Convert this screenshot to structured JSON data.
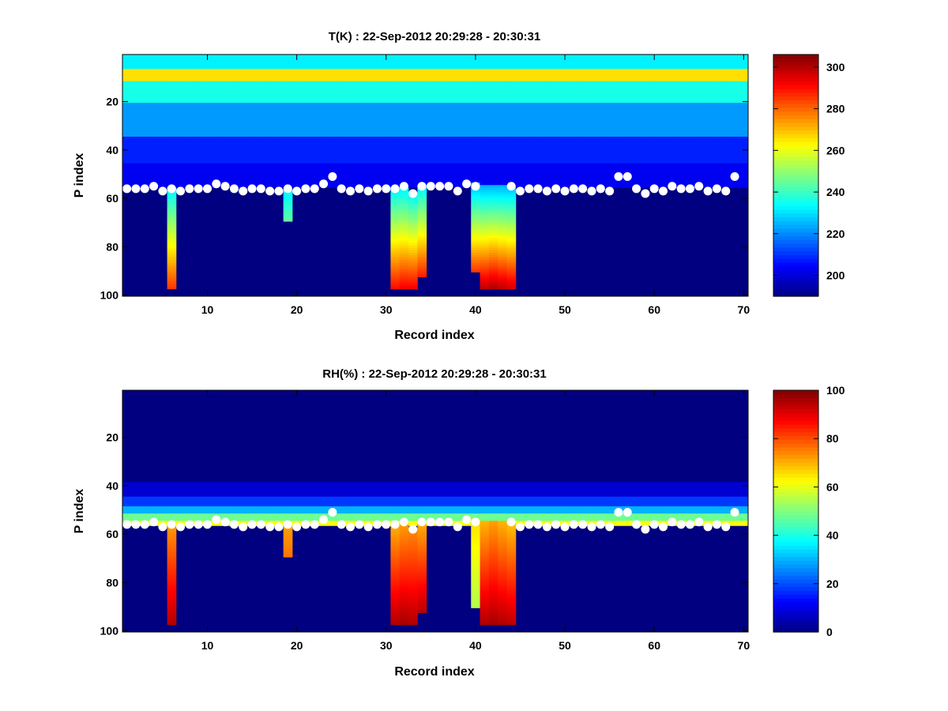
{
  "colors": {
    "background": "#ffffff",
    "marker": "#ffffff",
    "low": "#00008f",
    "high": "#800000"
  },
  "chart_data": [
    {
      "type": "heatmap",
      "id": "temperature",
      "title": "T(K) : 22-Sep-2012 20:29:28 - 20:30:31",
      "xlabel": "Record index",
      "ylabel": "P index",
      "xlim": [
        0.5,
        70.5
      ],
      "ylim": [
        0.5,
        100.5
      ],
      "y_reversed": true,
      "xticks": [
        10,
        20,
        30,
        40,
        50,
        60,
        70
      ],
      "yticks": [
        20,
        40,
        60,
        80,
        100
      ],
      "colormap": "jet",
      "clim": [
        190,
        306
      ],
      "colorbar_ticks": [
        200,
        220,
        240,
        260,
        280,
        300
      ],
      "n_records": 70,
      "n_levels": 100,
      "fill_value": 190,
      "layers": [
        {
          "p": [
            1,
            6
          ],
          "value": 232
        },
        {
          "p": [
            7,
            11
          ],
          "value": 266
        },
        {
          "p": [
            12,
            20
          ],
          "value": 236
        },
        {
          "p": [
            21,
            34
          ],
          "value": 222
        },
        {
          "p": [
            35,
            45
          ],
          "value": 208
        },
        {
          "p": [
            46,
            55
          ],
          "value": 203
        }
      ],
      "column_extensions": [
        {
          "record": 6,
          "p": [
            56,
            97
          ],
          "top": 232,
          "bottom": 285
        },
        {
          "record": 19,
          "p": [
            57,
            69
          ],
          "top": 232,
          "bottom": 244
        },
        {
          "record": 31,
          "p": [
            56,
            97
          ],
          "top": 232,
          "bottom": 290
        },
        {
          "record": 32,
          "p": [
            56,
            97
          ],
          "top": 232,
          "bottom": 292
        },
        {
          "record": 33,
          "p": [
            58,
            97
          ],
          "top": 232,
          "bottom": 292
        },
        {
          "record": 34,
          "p": [
            55,
            92
          ],
          "top": 232,
          "bottom": 288
        },
        {
          "record": 40,
          "p": [
            54,
            90
          ],
          "top": 225,
          "bottom": 285
        },
        {
          "record": 41,
          "p": [
            55,
            97
          ],
          "top": 225,
          "bottom": 298
        },
        {
          "record": 42,
          "p": [
            55,
            97
          ],
          "top": 225,
          "bottom": 300
        },
        {
          "record": 43,
          "p": [
            55,
            97
          ],
          "top": 225,
          "bottom": 298
        },
        {
          "record": 44,
          "p": [
            55,
            97
          ],
          "top": 225,
          "bottom": 296
        }
      ]
    },
    {
      "type": "heatmap",
      "id": "humidity",
      "title": "RH(%) : 22-Sep-2012 20:29:28 - 20:30:31",
      "xlabel": "Record index",
      "ylabel": "P index",
      "xlim": [
        0.5,
        70.5
      ],
      "ylim": [
        0.5,
        100.5
      ],
      "y_reversed": true,
      "xticks": [
        10,
        20,
        30,
        40,
        50,
        60,
        70
      ],
      "yticks": [
        20,
        40,
        60,
        80,
        100
      ],
      "colormap": "jet",
      "clim": [
        0,
        100
      ],
      "colorbar_ticks": [
        0,
        20,
        40,
        60,
        80,
        100
      ],
      "n_records": 70,
      "n_levels": 100,
      "fill_value": 0,
      "layers": [
        {
          "p": [
            1,
            38
          ],
          "value": 0
        },
        {
          "p": [
            39,
            44
          ],
          "value": 8
        },
        {
          "p": [
            45,
            48
          ],
          "value": 18
        },
        {
          "p": [
            49,
            51
          ],
          "value": 30
        },
        {
          "p": [
            52,
            54
          ],
          "value": 48
        },
        {
          "p": [
            55,
            56
          ],
          "value": 62
        }
      ],
      "column_extensions": [
        {
          "record": 6,
          "p": [
            56,
            97
          ],
          "top": 72,
          "bottom": 95
        },
        {
          "record": 19,
          "p": [
            57,
            69
          ],
          "top": 72,
          "bottom": 76
        },
        {
          "record": 31,
          "p": [
            56,
            97
          ],
          "top": 70,
          "bottom": 95
        },
        {
          "record": 32,
          "p": [
            56,
            97
          ],
          "top": 72,
          "bottom": 96
        },
        {
          "record": 33,
          "p": [
            58,
            97
          ],
          "top": 74,
          "bottom": 95
        },
        {
          "record": 34,
          "p": [
            55,
            92
          ],
          "top": 70,
          "bottom": 94
        },
        {
          "record": 40,
          "p": [
            54,
            90
          ],
          "top": 66,
          "bottom": 55
        },
        {
          "record": 41,
          "p": [
            55,
            97
          ],
          "top": 70,
          "bottom": 95
        },
        {
          "record": 42,
          "p": [
            55,
            97
          ],
          "top": 72,
          "bottom": 96
        },
        {
          "record": 43,
          "p": [
            55,
            97
          ],
          "top": 70,
          "bottom": 95
        },
        {
          "record": 44,
          "p": [
            55,
            97
          ],
          "top": 68,
          "bottom": 94
        }
      ]
    }
  ],
  "surface_markers": {
    "records": [
      1,
      2,
      3,
      4,
      5,
      6,
      7,
      8,
      9,
      10,
      11,
      12,
      13,
      14,
      15,
      16,
      17,
      18,
      19,
      20,
      21,
      22,
      23,
      24,
      25,
      26,
      27,
      28,
      29,
      30,
      31,
      32,
      33,
      34,
      35,
      36,
      37,
      38,
      39,
      40,
      41,
      42,
      43,
      44,
      45,
      46,
      47,
      48,
      49,
      50,
      51,
      52,
      53,
      54,
      55,
      56,
      57,
      58,
      59,
      60,
      61,
      62,
      63,
      64,
      65,
      66,
      67,
      68,
      69
    ],
    "p_index": [
      56,
      56,
      56,
      55,
      57,
      56,
      57,
      56,
      56,
      56,
      54,
      55,
      56,
      57,
      56,
      56,
      57,
      57,
      56,
      57,
      56,
      56,
      54,
      51,
      56,
      57,
      56,
      57,
      56,
      56,
      56,
      55,
      58,
      55,
      55,
      55,
      55,
      57,
      54,
      55,
      null,
      null,
      null,
      55,
      57,
      56,
      56,
      57,
      56,
      57,
      56,
      56,
      57,
      56,
      57,
      51,
      51,
      56,
      58,
      56,
      57,
      55,
      56,
      56,
      55,
      57,
      56,
      57,
      51
    ]
  }
}
